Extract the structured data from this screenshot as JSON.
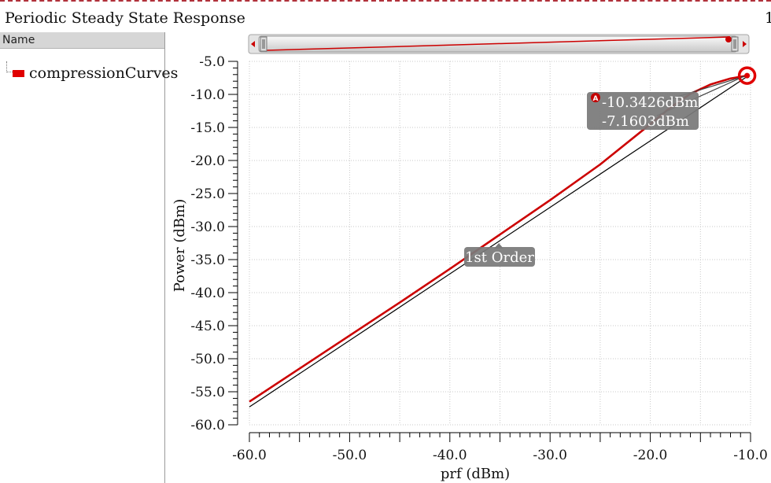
{
  "title": "Periodic Steady State Response",
  "title_right": "1",
  "legend": {
    "header": "Name",
    "items": [
      {
        "label": "compressionCurves",
        "color": "#e00000"
      }
    ]
  },
  "marker": {
    "badge": "A"
  },
  "annotations": {
    "marker_x": "-10.3426dBm",
    "marker_y": "-7.1603dBm",
    "line_label": "1st Order"
  },
  "chart_data": {
    "type": "line",
    "xlabel": "prf (dBm)",
    "ylabel": "Power (dBm)",
    "xlim": [
      -60.0,
      -10.0
    ],
    "ylim": [
      -60.0,
      -5.0
    ],
    "x_ticks": [
      -60.0,
      -50.0,
      -40.0,
      -30.0,
      -20.0,
      -10.0
    ],
    "x_tick_labels": [
      "-60.0",
      "-50.0",
      "-40.0",
      "-30.0",
      "-20.0",
      "-10.0"
    ],
    "y_ticks": [
      -5.0,
      -10.0,
      -15.0,
      -20.0,
      -25.0,
      -30.0,
      -35.0,
      -40.0,
      -45.0,
      -50.0,
      -55.0,
      -60.0
    ],
    "y_tick_labels": [
      "-5.0",
      "-10.0",
      "-15.0",
      "-20.0",
      "-25.0",
      "-30.0",
      "-35.0",
      "-40.0",
      "-45.0",
      "-50.0",
      "-55.0",
      "-60.0"
    ],
    "grid": true,
    "series": [
      {
        "color": "#cc0000",
        "x": [
          -60,
          -55,
          -50,
          -45,
          -40,
          -35,
          -30,
          -25,
          -20,
          -18,
          -16,
          -14,
          -12,
          -10.34
        ],
        "y": [
          -56.5,
          -51.5,
          -46.5,
          -41.5,
          -36.4,
          -31.2,
          -26.0,
          -20.6,
          -14.5,
          -12.0,
          -9.9,
          -8.5,
          -7.6,
          -7.16
        ]
      },
      {
        "color": "#000000",
        "x": [
          -60,
          -10.34
        ],
        "y": [
          -57.3,
          -7.3
        ]
      }
    ],
    "marker_point": {
      "x": -10.3426,
      "y": -7.1603
    }
  }
}
